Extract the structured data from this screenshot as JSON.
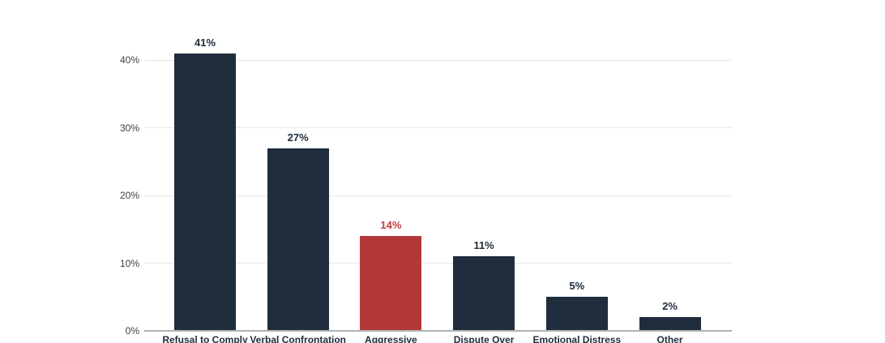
{
  "chart_data": {
    "type": "bar",
    "categories": [
      "Refusal to Comply",
      "Verbal Confrontation",
      "Aggressive",
      "Dispute Over",
      "Emotional Distress",
      "Other"
    ],
    "values": [
      41,
      27,
      14,
      11,
      5,
      2
    ],
    "value_labels": [
      "41%",
      "27%",
      "14%",
      "11%",
      "5%",
      "2%"
    ],
    "bar_colors": [
      "#1f2d3d",
      "#1f2d3d",
      "#b33939",
      "#1f2d3d",
      "#1f2d3d",
      "#1f2d3d"
    ],
    "value_label_colors": [
      "#1f2d3d",
      "#1f2d3d",
      "#c03c3c",
      "#1f2d3d",
      "#1f2d3d",
      "#1f2d3d"
    ],
    "y_ticks": [
      {
        "value": 0,
        "label": "0%"
      },
      {
        "value": 10,
        "label": "10%"
      },
      {
        "value": 20,
        "label": "20%"
      },
      {
        "value": 30,
        "label": "30%"
      },
      {
        "value": 40,
        "label": "40%"
      }
    ],
    "ylim": [
      0,
      41
    ],
    "grid": true,
    "legend": "none",
    "title": ""
  },
  "colors": {
    "bar_primary": "#1f2d3d",
    "bar_highlight": "#b33939",
    "gridline": "#e9e9e9",
    "axis_line": "#b1b1b1",
    "y_tick_label": "#404040",
    "category_label": "#1f2d3d"
  }
}
